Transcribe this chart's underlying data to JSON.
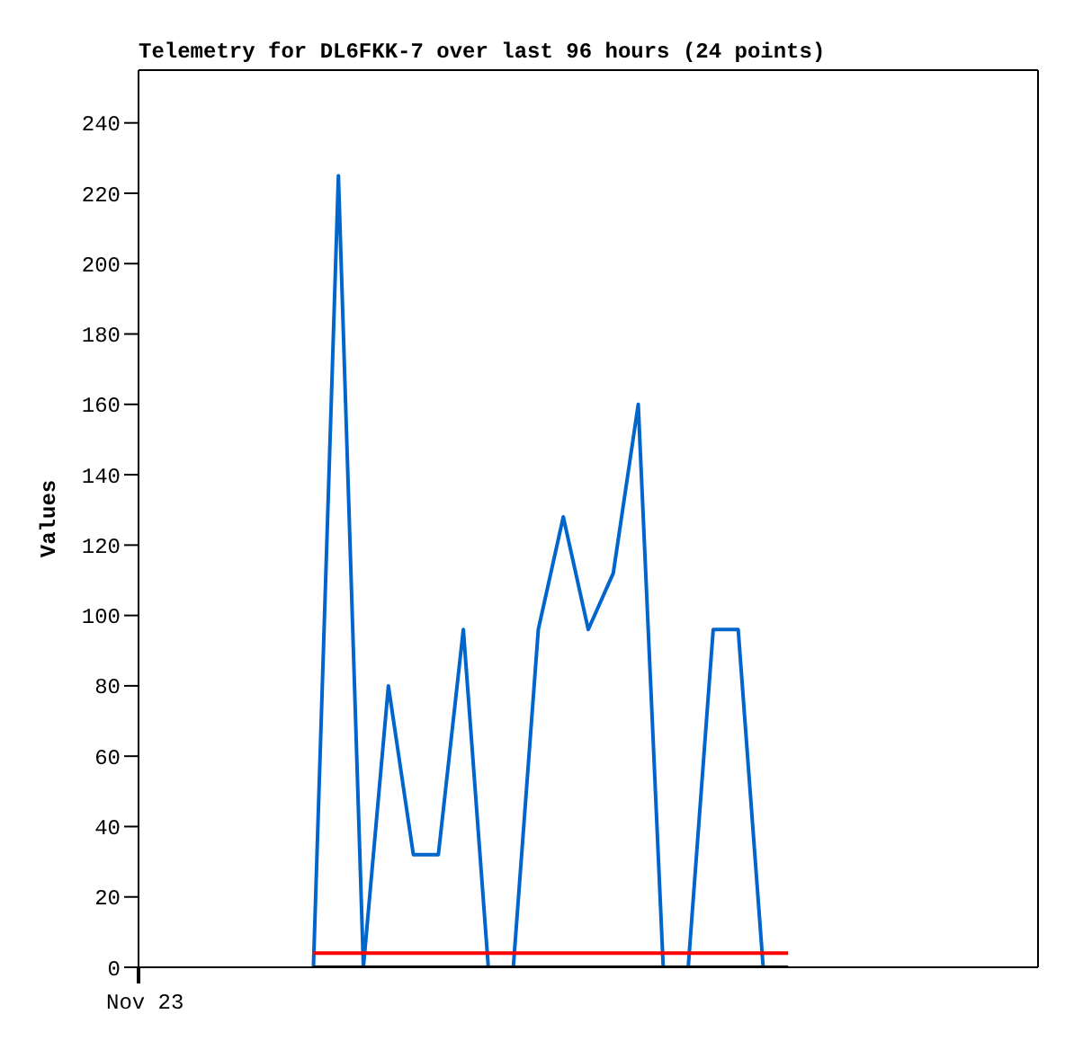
{
  "chart_data": {
    "type": "line",
    "title": "Telemetry for DL6FKK-7 over last 96 hours (24 points)",
    "ylabel": "Values",
    "annotations": [
      "Nov 23"
    ],
    "categories": [
      null,
      null,
      null,
      null,
      null,
      null,
      null,
      null,
      null,
      null,
      null,
      null,
      null,
      null,
      null,
      null,
      null,
      null,
      null,
      null,
      null,
      null,
      null,
      null,
      null,
      null,
      null,
      null,
      null,
      null,
      null,
      null,
      null,
      null,
      null,
      null,
      null
    ],
    "ylim": [
      0,
      255
    ],
    "yticks": [
      0,
      20,
      40,
      60,
      80,
      100,
      120,
      140,
      160,
      180,
      200,
      220,
      240
    ],
    "grid": false,
    "legend": false,
    "marker": "none",
    "line_style": "solid",
    "series": [
      {
        "color": "#0066cc",
        "values": [
          null,
          null,
          null,
          null,
          null,
          null,
          null,
          0,
          225,
          0,
          80,
          32,
          32,
          96,
          0,
          0,
          96,
          128,
          96,
          112,
          160,
          0,
          0,
          96,
          96,
          0,
          null,
          null,
          null,
          null,
          null,
          null,
          null,
          null,
          null,
          null,
          null
        ]
      },
      {
        "color": "#ff0000",
        "values": [
          null,
          null,
          null,
          null,
          null,
          null,
          null,
          4,
          4,
          4,
          4,
          4,
          4,
          4,
          4,
          4,
          4,
          4,
          4,
          4,
          4,
          4,
          4,
          4,
          4,
          4,
          4,
          null,
          null,
          null,
          null,
          null,
          null,
          null,
          null,
          null,
          null
        ]
      },
      {
        "color": "#000000",
        "values": [
          null,
          null,
          null,
          null,
          null,
          null,
          null,
          0,
          0,
          0,
          0,
          0,
          0,
          0,
          0,
          0,
          0,
          0,
          0,
          0,
          0,
          0,
          0,
          0,
          0,
          0,
          0,
          null,
          null,
          null,
          null,
          null,
          null,
          null,
          null,
          null,
          null
        ]
      }
    ]
  }
}
